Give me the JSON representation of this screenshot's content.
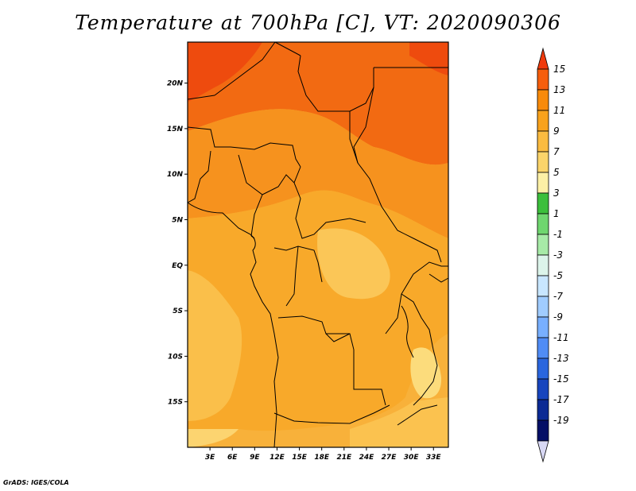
{
  "title": "Temperature at 700hPa [C], VT: 2020090306",
  "credit": "GrADS: IGES/COLA",
  "map": {
    "lon_range": [
      0,
      35
    ],
    "lat_range": [
      -20,
      24.5
    ],
    "lon_ticks": [
      "3E",
      "6E",
      "9E",
      "12E",
      "15E",
      "18E",
      "21E",
      "24E",
      "27E",
      "30E",
      "33E"
    ],
    "lat_ticks": [
      "20N",
      "15N",
      "10N",
      "5N",
      "EQ",
      "5S",
      "10S",
      "15S"
    ]
  },
  "colorbar": {
    "labels": [
      "15",
      "13",
      "11",
      "9",
      "7",
      "5",
      "3",
      "1",
      "-1",
      "-3",
      "-5",
      "-7",
      "-9",
      "-11",
      "-13",
      "-15",
      "-17",
      "-19"
    ],
    "colors": [
      "#f03a0c",
      "#f65e0c",
      "#f88a0a",
      "#f8a21c",
      "#fabb40",
      "#fbd46a",
      "#fcf0a6",
      "#3cbf3c",
      "#6fd66f",
      "#a7eaa7",
      "#dcf4ea",
      "#c8e6ff",
      "#a0ccff",
      "#78afff",
      "#508cf5",
      "#2a66de",
      "#1745be",
      "#0b2a94",
      "#050f66",
      "#d8d8f4"
    ]
  }
}
